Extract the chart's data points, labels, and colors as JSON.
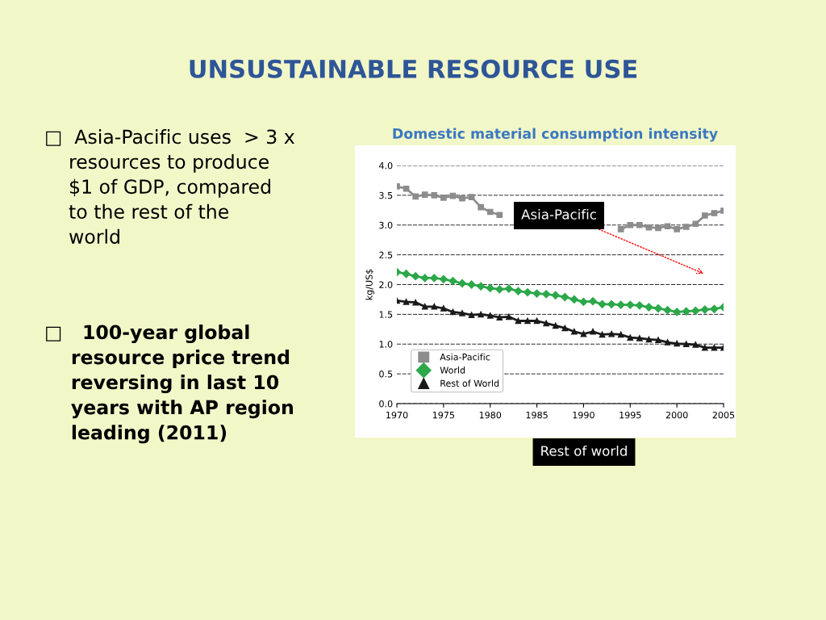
{
  "chart_data": {
    "type": "line",
    "title": "UNSUSTAINABLE RESOURCE USE",
    "subtitle": "Domestic material consumption intensity",
    "ylabel": "kg/US$",
    "x": [
      1970,
      1971,
      1972,
      1973,
      1974,
      1975,
      1976,
      1977,
      1978,
      1979,
      1980,
      1981,
      1982,
      1983,
      1984,
      1985,
      1986,
      1987,
      1988,
      1989,
      1990,
      1991,
      1992,
      1993,
      1994,
      1995,
      1996,
      1997,
      1998,
      1999,
      2000,
      2001,
      2002,
      2003,
      2004,
      2005
    ],
    "series": [
      {
        "name": "Asia-Pacific",
        "color": "#8c8c8c",
        "marker": "square",
        "values": [
          3.65,
          3.61,
          3.48,
          3.51,
          3.5,
          3.46,
          3.49,
          3.45,
          3.47,
          3.3,
          3.22,
          3.17,
          null,
          null,
          null,
          null,
          null,
          null,
          null,
          null,
          null,
          null,
          null,
          null,
          2.93,
          3.0,
          3.0,
          2.96,
          2.95,
          2.98,
          2.93,
          2.97,
          3.02,
          3.16,
          3.2,
          3.24
        ]
      },
      {
        "name": "World",
        "color": "#2ca84a",
        "marker": "diamond",
        "values": [
          2.21,
          2.18,
          2.14,
          2.11,
          2.11,
          2.09,
          2.06,
          2.02,
          2.0,
          1.97,
          1.94,
          1.92,
          1.93,
          1.89,
          1.87,
          1.85,
          1.84,
          1.82,
          1.79,
          1.75,
          1.71,
          1.72,
          1.67,
          1.67,
          1.66,
          1.66,
          1.65,
          1.62,
          1.6,
          1.57,
          1.54,
          1.55,
          1.56,
          1.58,
          1.59,
          1.62
        ]
      },
      {
        "name": "Rest of World",
        "color": "#1a1a1a",
        "marker": "triangle",
        "values": [
          1.73,
          1.71,
          1.7,
          1.63,
          1.63,
          1.6,
          1.54,
          1.52,
          1.49,
          1.5,
          1.48,
          1.45,
          1.46,
          1.39,
          1.39,
          1.39,
          1.35,
          1.31,
          1.27,
          1.21,
          1.17,
          1.21,
          1.16,
          1.17,
          1.16,
          1.11,
          1.1,
          1.08,
          1.07,
          1.03,
          1.01,
          1.0,
          0.99,
          0.94,
          0.94,
          0.94
        ]
      }
    ],
    "xlim": [
      1970,
      2005
    ],
    "xticks": [
      1970,
      1975,
      1980,
      1985,
      1990,
      1995,
      2000,
      2005
    ],
    "ylim": [
      0,
      4
    ],
    "yticks": [
      {
        "value": 0,
        "label": "0.0"
      },
      {
        "value": 0.5,
        "label": "0.5"
      },
      {
        "value": 1,
        "label": "1.0"
      },
      {
        "value": 1.5,
        "label": "1.5"
      },
      {
        "value": 2,
        "label": "2.0"
      },
      {
        "value": 2.5,
        "label": "2.5"
      },
      {
        "value": 3,
        "label": "3.0"
      },
      {
        "value": 3.5,
        "label": "3.5"
      },
      {
        "value": 4,
        "label": "4.0"
      }
    ],
    "grid": "y",
    "line_style": "solid",
    "legend": "bottom left",
    "annotations": [
      "□  Asia-Pacific uses  > 3 x\n    resources to produce\n    $1 of GDP, compared\n    to the rest of the\n    world",
      "□   100-year global\n    resource price trend\n    reversing in last 10\n    years with AP region\n    leading (2011)",
      "Asia-Pacific",
      "Rest of world"
    ]
  }
}
